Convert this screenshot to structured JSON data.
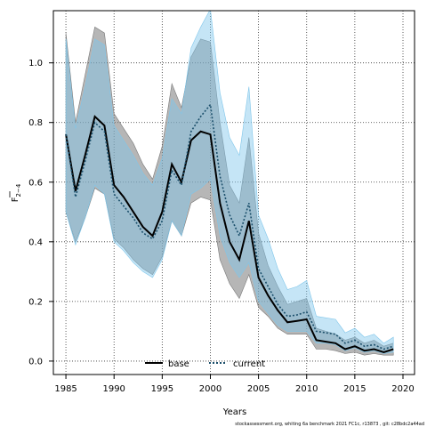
{
  "chart_data": {
    "type": "line",
    "xlabel": "Years",
    "ylabel_main": "F",
    "ylabel_sub": "2−4",
    "xlim": [
      1983.7,
      2021.2
    ],
    "ylim": [
      -0.045,
      1.175
    ],
    "x_ticks": [
      1985,
      1990,
      1995,
      2000,
      2005,
      2010,
      2015,
      2020
    ],
    "y_ticks": [
      0.0,
      0.2,
      0.4,
      0.6,
      0.8,
      1.0
    ],
    "y_tick_labels": [
      "0.0",
      "0.2",
      "0.4",
      "0.6",
      "0.8",
      "1.0"
    ],
    "grid": true,
    "legend_position": "bottom-center",
    "footnote": "stockassessment.org, whiting 6a benchmark 2021 FC1c, r13873 , git: c28bdc2a44ad",
    "series": [
      {
        "name": "base",
        "color": "#000000",
        "line_style": "solid",
        "band_color": "#7a7a7a",
        "years": [
          1985,
          1986,
          1987,
          1988,
          1989,
          1990,
          1991,
          1992,
          1993,
          1994,
          1995,
          1996,
          1997,
          1998,
          1999,
          2000,
          2001,
          2002,
          2003,
          2004,
          2005,
          2006,
          2007,
          2008,
          2009,
          2010,
          2011,
          2012,
          2013,
          2014,
          2015,
          2016,
          2017,
          2018,
          2019
        ],
        "values": [
          0.76,
          0.57,
          0.69,
          0.82,
          0.79,
          0.59,
          0.55,
          0.5,
          0.45,
          0.42,
          0.5,
          0.66,
          0.6,
          0.74,
          0.77,
          0.76,
          0.53,
          0.4,
          0.34,
          0.47,
          0.28,
          0.22,
          0.17,
          0.13,
          0.135,
          0.14,
          0.07,
          0.065,
          0.06,
          0.04,
          0.05,
          0.035,
          0.04,
          0.03,
          0.04
        ],
        "lower": [
          0.5,
          0.4,
          0.48,
          0.58,
          0.56,
          0.41,
          0.38,
          0.34,
          0.31,
          0.29,
          0.35,
          0.47,
          0.42,
          0.53,
          0.55,
          0.54,
          0.34,
          0.26,
          0.21,
          0.29,
          0.18,
          0.15,
          0.11,
          0.09,
          0.09,
          0.09,
          0.04,
          0.04,
          0.035,
          0.025,
          0.03,
          0.02,
          0.025,
          0.02,
          0.02
        ],
        "upper": [
          1.1,
          0.8,
          0.96,
          1.12,
          1.1,
          0.83,
          0.78,
          0.73,
          0.66,
          0.61,
          0.72,
          0.93,
          0.85,
          1.02,
          1.08,
          1.07,
          0.8,
          0.59,
          0.53,
          0.75,
          0.43,
          0.32,
          0.25,
          0.19,
          0.2,
          0.21,
          0.11,
          0.1,
          0.09,
          0.07,
          0.08,
          0.06,
          0.07,
          0.05,
          0.06
        ]
      },
      {
        "name": "current",
        "color": "#1b4f6b",
        "line_style": "dotted",
        "band_color": "#7fc6ea",
        "years": [
          1985,
          1986,
          1987,
          1988,
          1989,
          1990,
          1991,
          1992,
          1993,
          1994,
          1995,
          1996,
          1997,
          1998,
          1999,
          2000,
          2001,
          2002,
          2003,
          2004,
          2005,
          2006,
          2007,
          2008,
          2009,
          2010,
          2011,
          2012,
          2013,
          2014,
          2015,
          2016,
          2017,
          2018,
          2019
        ],
        "values": [
          0.76,
          0.55,
          0.67,
          0.8,
          0.77,
          0.56,
          0.52,
          0.48,
          0.43,
          0.41,
          0.47,
          0.64,
          0.59,
          0.77,
          0.82,
          0.86,
          0.62,
          0.49,
          0.42,
          0.53,
          0.31,
          0.25,
          0.19,
          0.15,
          0.155,
          0.165,
          0.1,
          0.095,
          0.09,
          0.06,
          0.07,
          0.05,
          0.055,
          0.04,
          0.05
        ],
        "lower": [
          0.5,
          0.39,
          0.48,
          0.59,
          0.56,
          0.4,
          0.37,
          0.33,
          0.3,
          0.28,
          0.34,
          0.47,
          0.42,
          0.56,
          0.58,
          0.61,
          0.42,
          0.33,
          0.28,
          0.33,
          0.2,
          0.16,
          0.12,
          0.1,
          0.1,
          0.1,
          0.06,
          0.06,
          0.055,
          0.035,
          0.045,
          0.03,
          0.035,
          0.025,
          0.03
        ],
        "upper": [
          1.08,
          0.78,
          0.92,
          1.08,
          1.06,
          0.79,
          0.74,
          0.69,
          0.63,
          0.59,
          0.68,
          0.88,
          0.83,
          1.05,
          1.12,
          1.18,
          0.9,
          0.75,
          0.69,
          0.92,
          0.49,
          0.41,
          0.31,
          0.24,
          0.25,
          0.27,
          0.15,
          0.145,
          0.14,
          0.095,
          0.11,
          0.08,
          0.09,
          0.06,
          0.08
        ]
      }
    ]
  }
}
